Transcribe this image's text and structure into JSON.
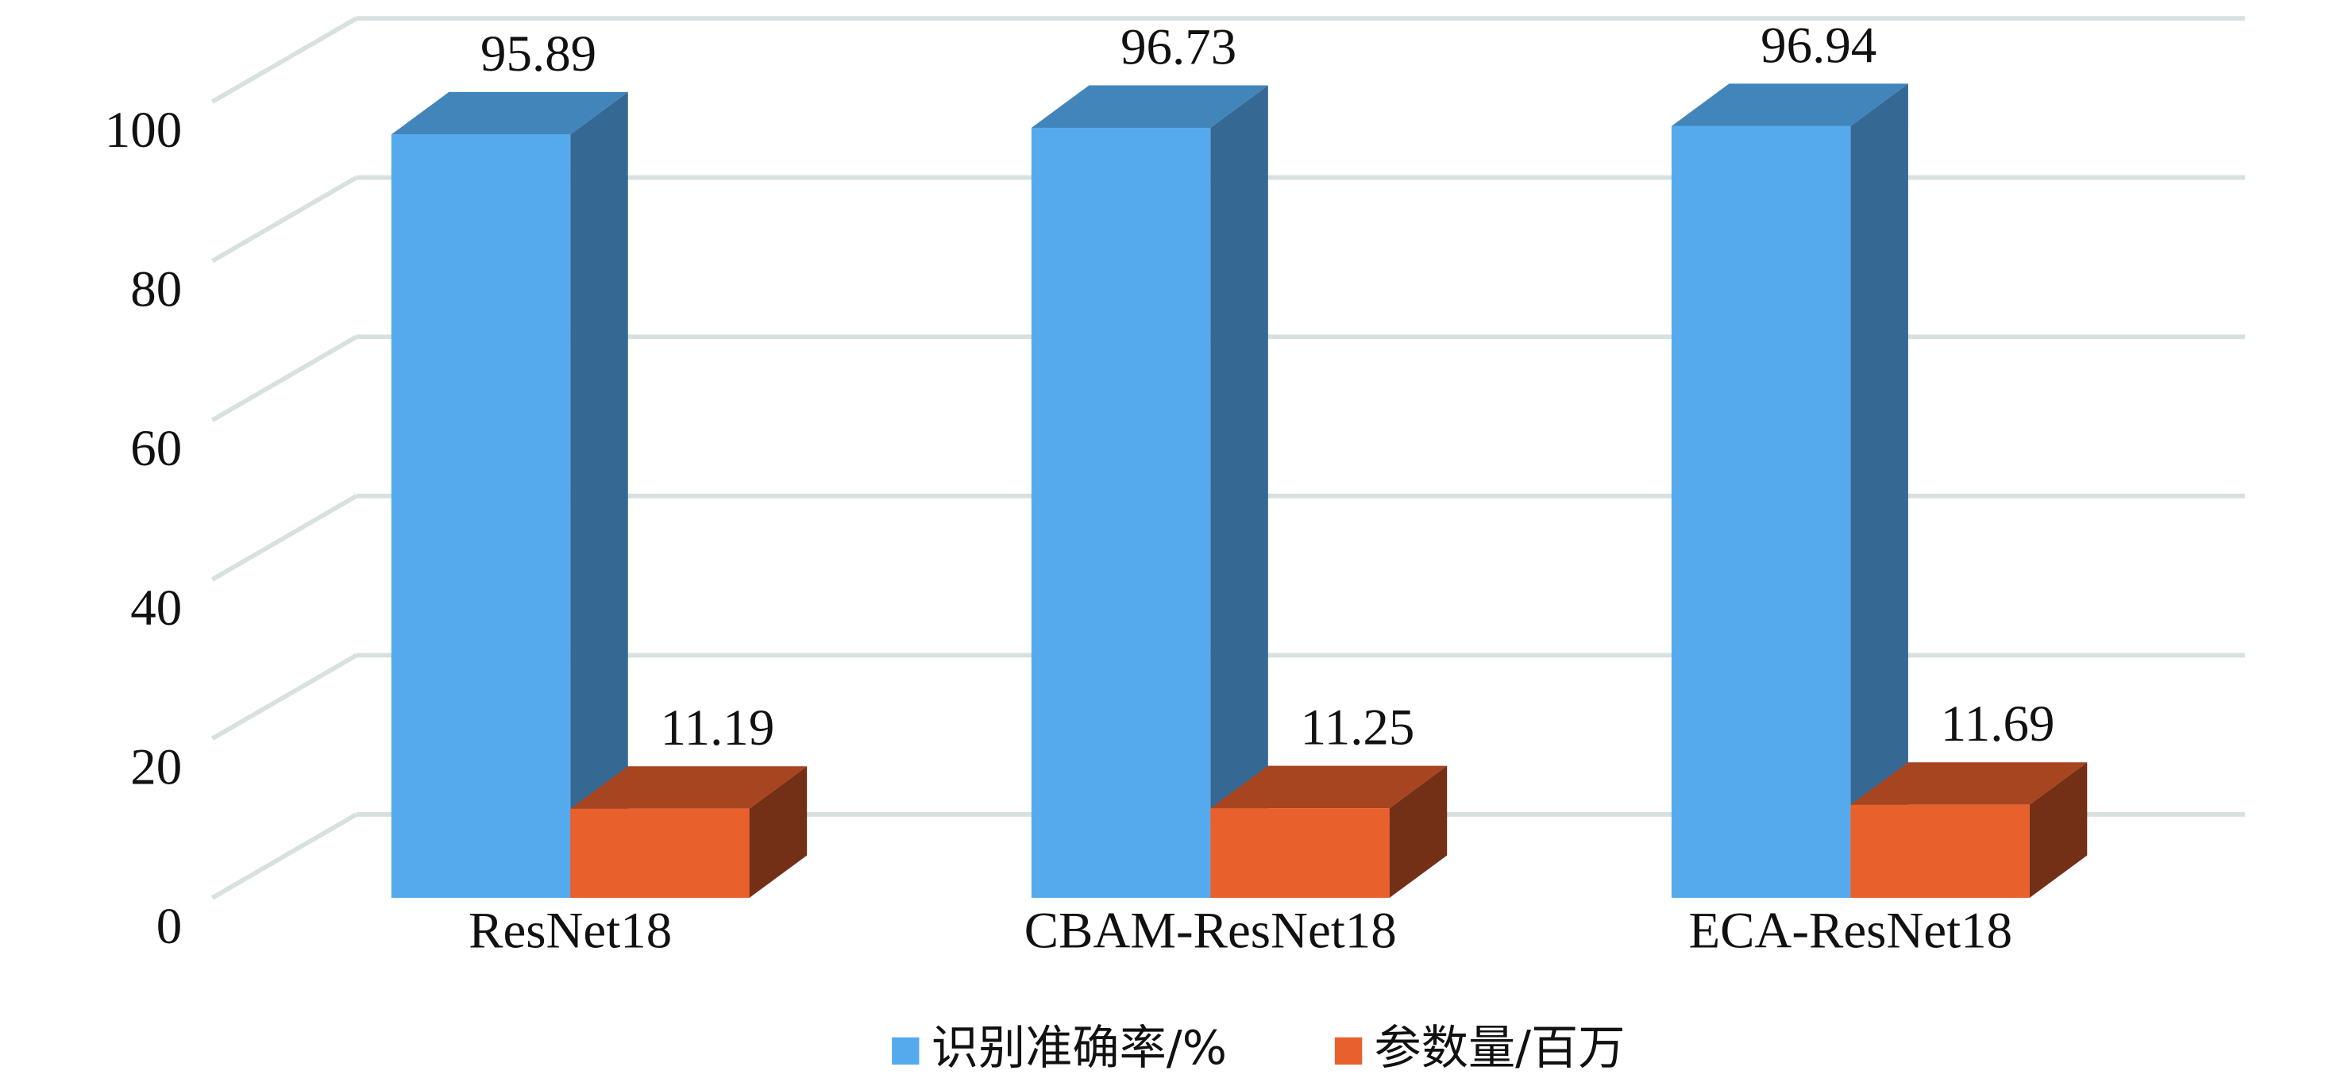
{
  "chart_data": {
    "type": "bar3d",
    "categories": [
      "ResNet18",
      "CBAM-ResNet18",
      "ECA-ResNet18"
    ],
    "series": [
      {
        "name": "识别准确率/%",
        "color": "#55aaee",
        "values": [
          95.89,
          96.73,
          96.94
        ]
      },
      {
        "name": "参数量/百万",
        "color": "#e8602c",
        "values": [
          11.19,
          11.25,
          11.69
        ]
      }
    ],
    "ylim": [
      0,
      100
    ],
    "yticks": [
      0,
      20,
      40,
      60,
      80,
      100
    ],
    "grid": true,
    "legend": "bottom"
  }
}
